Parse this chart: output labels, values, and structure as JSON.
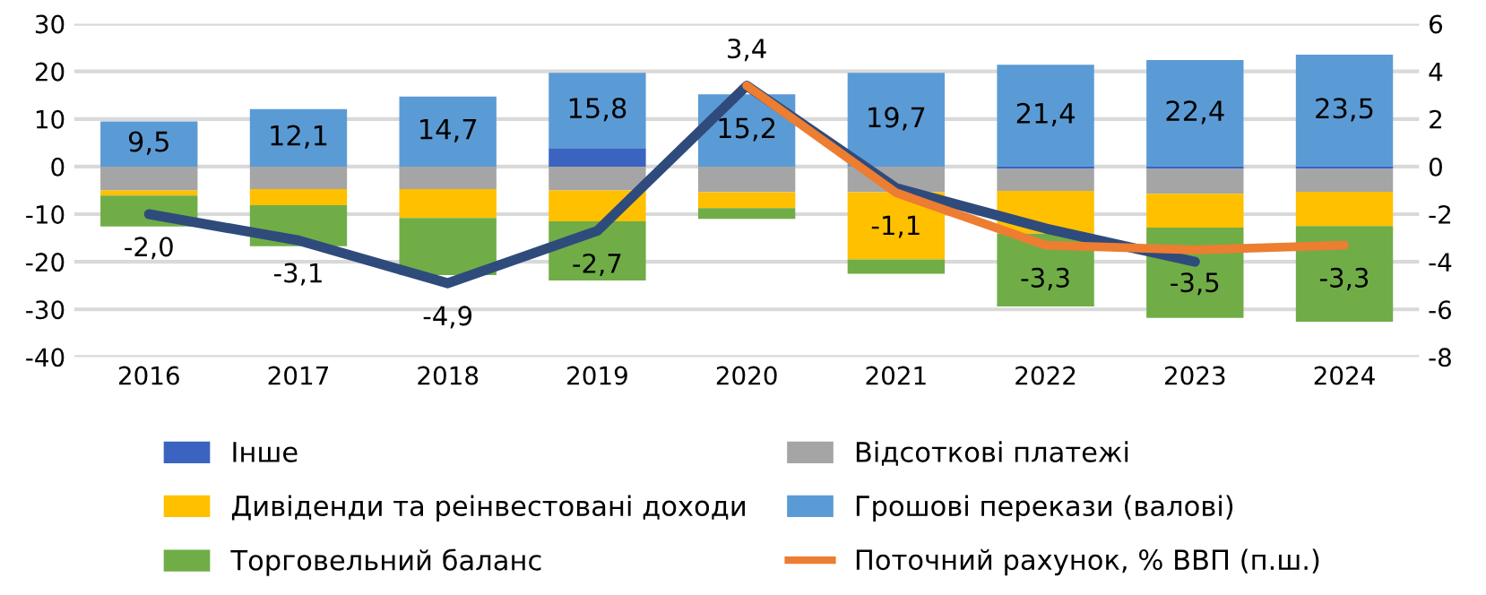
{
  "chart_data": {
    "type": "bar",
    "stacked": true,
    "categories": [
      "2016",
      "2017",
      "2018",
      "2019",
      "2020",
      "2021",
      "2022",
      "2023",
      "2024"
    ],
    "ylim": [
      -40,
      30
    ],
    "yticks": [
      -40,
      -30,
      -20,
      -10,
      0,
      10,
      20,
      30
    ],
    "y2lim": [
      -8,
      6
    ],
    "y2ticks": [
      -8,
      -6,
      -4,
      -2,
      0,
      2,
      4,
      6
    ],
    "grid": "y",
    "legend": "bottom",
    "series": [
      {
        "name": "Інше",
        "color": "#3a64c0",
        "values": [
          0,
          0,
          0,
          3.9,
          0,
          0,
          -0.5,
          -0.5,
          -0.5
        ]
      },
      {
        "name": "Відсоткові платежі",
        "color": "#a5a5a5",
        "values": [
          -5.0,
          -4.7,
          -4.7,
          -5.0,
          -5.4,
          -5.4,
          -4.6,
          -5.2,
          -4.8
        ]
      },
      {
        "name": "Дивіденди та реінвестовані доходи",
        "color": "#ffc000",
        "values": [
          -1.1,
          -3.4,
          -6.1,
          -6.5,
          -3.3,
          -14.1,
          -9.0,
          -7.1,
          -7.2
        ]
      },
      {
        "name": "Грошові перекази (валові)",
        "color": "#5b9bd5",
        "value_labels": [
          "9,5",
          "12,1",
          "14,7",
          "15,8",
          "15,2",
          "19,7",
          "21,4",
          "22,4",
          "23,5"
        ],
        "values": [
          9.5,
          12.1,
          14.7,
          15.8,
          15.2,
          19.7,
          21.4,
          22.4,
          23.5
        ]
      },
      {
        "name": "Торговельний баланс",
        "color": "#70ad47",
        "values": [
          -6.5,
          -8.6,
          -12.0,
          -12.4,
          -2.3,
          -3.0,
          -15.3,
          -19.0,
          -20.1
        ]
      },
      {
        "name": "Поточний рахунок, % ВВП (п.ш.)",
        "type": "line",
        "axis": "y2",
        "color": "#ed7d31",
        "value_labels": [
          null,
          null,
          null,
          null,
          "3,4",
          "-1,1",
          "-3,3",
          "-3,5",
          "-3,3"
        ],
        "values": [
          null,
          null,
          null,
          null,
          3.4,
          -1.1,
          -3.3,
          -3.5,
          -3.3
        ]
      },
      {
        "type": "line",
        "axis": "y2",
        "color": "#2f4b7c",
        "value_labels": [
          "-2,0",
          "-3,1",
          "-4,9",
          "-2,7",
          null,
          null,
          null,
          null,
          null
        ],
        "values": [
          -2.0,
          -3.1,
          -4.9,
          -2.7,
          3.4,
          -0.9,
          -2.6,
          -4.0,
          null
        ]
      }
    ]
  }
}
